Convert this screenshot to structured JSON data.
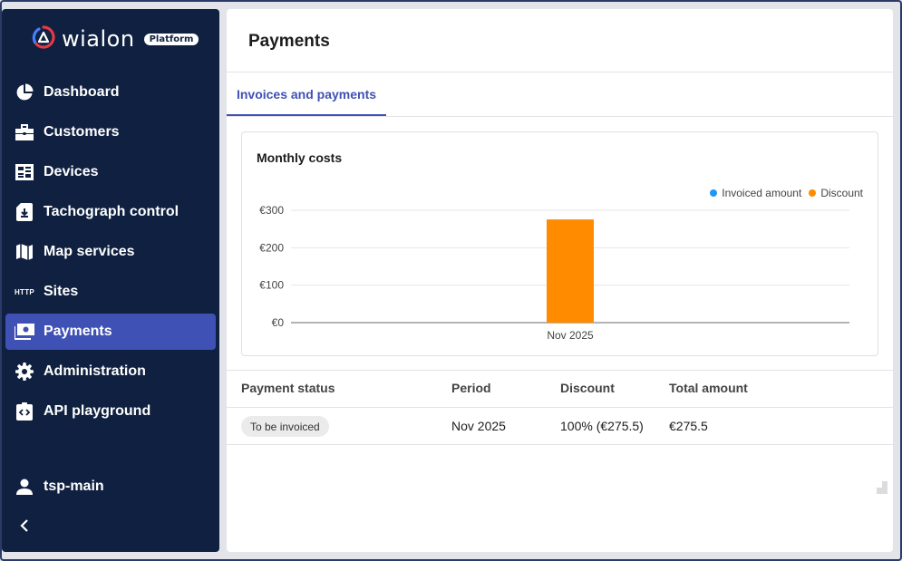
{
  "app": {
    "logo_text": "wialon",
    "logo_badge": "Platform"
  },
  "sidebar": {
    "items": [
      {
        "label": "Dashboard",
        "icon": "pie-chart-icon",
        "active": false
      },
      {
        "label": "Customers",
        "icon": "briefcase-icon",
        "active": false
      },
      {
        "label": "Devices",
        "icon": "device-list-icon",
        "active": false
      },
      {
        "label": "Tachograph control",
        "icon": "tachograph-card-icon",
        "active": false
      },
      {
        "label": "Map services",
        "icon": "map-icon",
        "active": false
      },
      {
        "label": "Sites",
        "icon": "http-icon",
        "icon_text": "HTTP",
        "active": false
      },
      {
        "label": "Payments",
        "icon": "payments-icon",
        "active": true
      },
      {
        "label": "Administration",
        "icon": "gear-icon",
        "active": false
      },
      {
        "label": "API playground",
        "icon": "code-clipboard-icon",
        "active": false
      }
    ],
    "user": {
      "name": "tsp-main",
      "icon": "user-icon"
    },
    "collapse_icon": "chevron-left-icon"
  },
  "main": {
    "title": "Payments",
    "tabs": [
      {
        "label": "Invoices and payments",
        "active": true
      }
    ],
    "chart_card": {
      "title": "Monthly costs"
    }
  },
  "chart_data": {
    "type": "bar",
    "title": "Monthly costs",
    "categories": [
      "Nov 2025"
    ],
    "series": [
      {
        "name": "Invoiced amount",
        "color": "#2196f3",
        "values": [
          0
        ]
      },
      {
        "name": "Discount",
        "color": "#ff8c00",
        "values": [
          275.5
        ]
      }
    ],
    "yticks": [
      "€0",
      "€100",
      "€200",
      "€300"
    ],
    "ytick_values": [
      0,
      100,
      200,
      300
    ],
    "ylim": [
      0,
      300
    ],
    "legend_position": "top-right",
    "grid": true
  },
  "table": {
    "columns": [
      "Payment status",
      "Period",
      "Discount",
      "Total amount"
    ],
    "rows": [
      {
        "status": "To be invoiced",
        "period": "Nov 2025",
        "discount": "100% (€275.5)",
        "total": "€275.5"
      }
    ]
  }
}
